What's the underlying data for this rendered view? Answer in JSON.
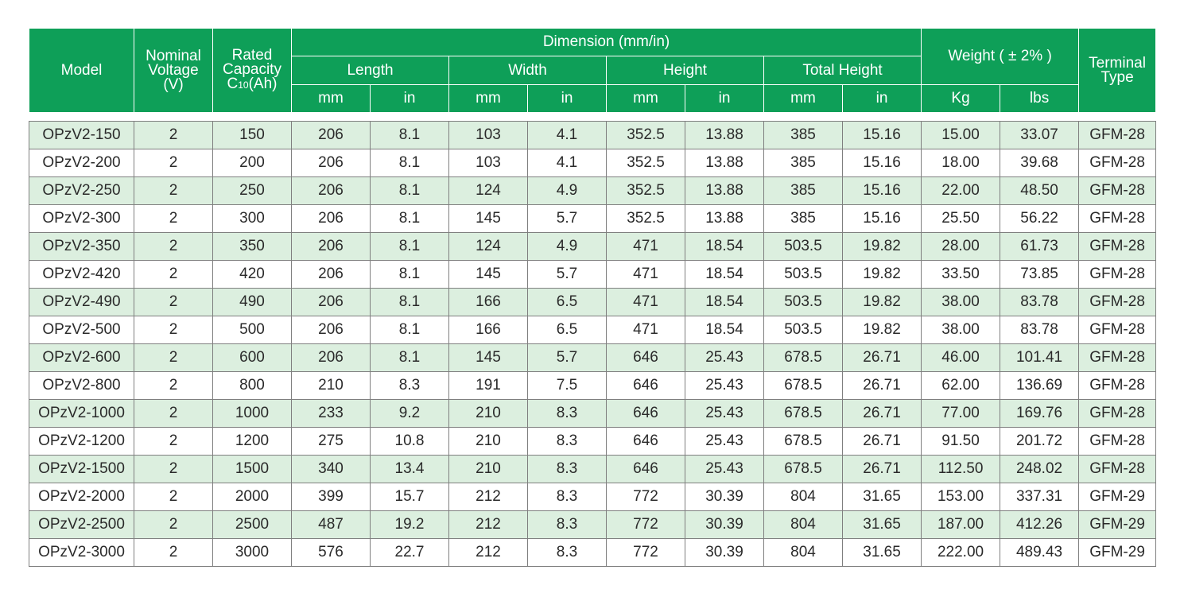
{
  "header": {
    "model": "Model",
    "nominal_voltage": [
      "Nominal",
      "Voltage",
      "(V)"
    ],
    "rated_capacity": [
      "Rated",
      "Capacity",
      "C",
      "10",
      "(Ah)"
    ],
    "dimension": "Dimension (mm/in)",
    "length": "Length",
    "width": "Width",
    "height": "Height",
    "total_height": "Total Height",
    "weight": "Weight ( ± 2% )",
    "terminal_type": [
      "Terminal",
      "Type"
    ],
    "units": [
      "mm",
      "in",
      "mm",
      "in",
      "mm",
      "in",
      "mm",
      "in",
      "Kg",
      "lbs"
    ]
  },
  "rows": [
    [
      "OPzV2-150",
      "2",
      "150",
      "206",
      "8.1",
      "103",
      "4.1",
      "352.5",
      "13.88",
      "385",
      "15.16",
      "15.00",
      "33.07",
      "GFM-28"
    ],
    [
      "OPzV2-200",
      "2",
      "200",
      "206",
      "8.1",
      "103",
      "4.1",
      "352.5",
      "13.88",
      "385",
      "15.16",
      "18.00",
      "39.68",
      "GFM-28"
    ],
    [
      "OPzV2-250",
      "2",
      "250",
      "206",
      "8.1",
      "124",
      "4.9",
      "352.5",
      "13.88",
      "385",
      "15.16",
      "22.00",
      "48.50",
      "GFM-28"
    ],
    [
      "OPzV2-300",
      "2",
      "300",
      "206",
      "8.1",
      "145",
      "5.7",
      "352.5",
      "13.88",
      "385",
      "15.16",
      "25.50",
      "56.22",
      "GFM-28"
    ],
    [
      "OPzV2-350",
      "2",
      "350",
      "206",
      "8.1",
      "124",
      "4.9",
      "471",
      "18.54",
      "503.5",
      "19.82",
      "28.00",
      "61.73",
      "GFM-28"
    ],
    [
      "OPzV2-420",
      "2",
      "420",
      "206",
      "8.1",
      "145",
      "5.7",
      "471",
      "18.54",
      "503.5",
      "19.82",
      "33.50",
      "73.85",
      "GFM-28"
    ],
    [
      "OPzV2-490",
      "2",
      "490",
      "206",
      "8.1",
      "166",
      "6.5",
      "471",
      "18.54",
      "503.5",
      "19.82",
      "38.00",
      "83.78",
      "GFM-28"
    ],
    [
      "OPzV2-500",
      "2",
      "500",
      "206",
      "8.1",
      "166",
      "6.5",
      "471",
      "18.54",
      "503.5",
      "19.82",
      "38.00",
      "83.78",
      "GFM-28"
    ],
    [
      "OPzV2-600",
      "2",
      "600",
      "206",
      "8.1",
      "145",
      "5.7",
      "646",
      "25.43",
      "678.5",
      "26.71",
      "46.00",
      "101.41",
      "GFM-28"
    ],
    [
      "OPzV2-800",
      "2",
      "800",
      "210",
      "8.3",
      "191",
      "7.5",
      "646",
      "25.43",
      "678.5",
      "26.71",
      "62.00",
      "136.69",
      "GFM-28"
    ],
    [
      "OPzV2-1000",
      "2",
      "1000",
      "233",
      "9.2",
      "210",
      "8.3",
      "646",
      "25.43",
      "678.5",
      "26.71",
      "77.00",
      "169.76",
      "GFM-28"
    ],
    [
      "OPzV2-1200",
      "2",
      "1200",
      "275",
      "10.8",
      "210",
      "8.3",
      "646",
      "25.43",
      "678.5",
      "26.71",
      "91.50",
      "201.72",
      "GFM-28"
    ],
    [
      "OPzV2-1500",
      "2",
      "1500",
      "340",
      "13.4",
      "210",
      "8.3",
      "646",
      "25.43",
      "678.5",
      "26.71",
      "112.50",
      "248.02",
      "GFM-28"
    ],
    [
      "OPzV2-2000",
      "2",
      "2000",
      "399",
      "15.7",
      "212",
      "8.3",
      "772",
      "30.39",
      "804",
      "31.65",
      "153.00",
      "337.31",
      "GFM-29"
    ],
    [
      "OPzV2-2500",
      "2",
      "2500",
      "487",
      "19.2",
      "212",
      "8.3",
      "772",
      "30.39",
      "804",
      "31.65",
      "187.00",
      "412.26",
      "GFM-29"
    ],
    [
      "OPzV2-3000",
      "2",
      "3000",
      "576",
      "22.7",
      "212",
      "8.3",
      "772",
      "30.39",
      "804",
      "31.65",
      "222.00",
      "489.43",
      "GFM-29"
    ]
  ],
  "colors": {
    "header_bg": "#0e9f58",
    "header_text": "#ffffff",
    "row_shade": "#dcefdf",
    "row_plain": "#ffffff",
    "cell_border": "#7f7f7f"
  }
}
